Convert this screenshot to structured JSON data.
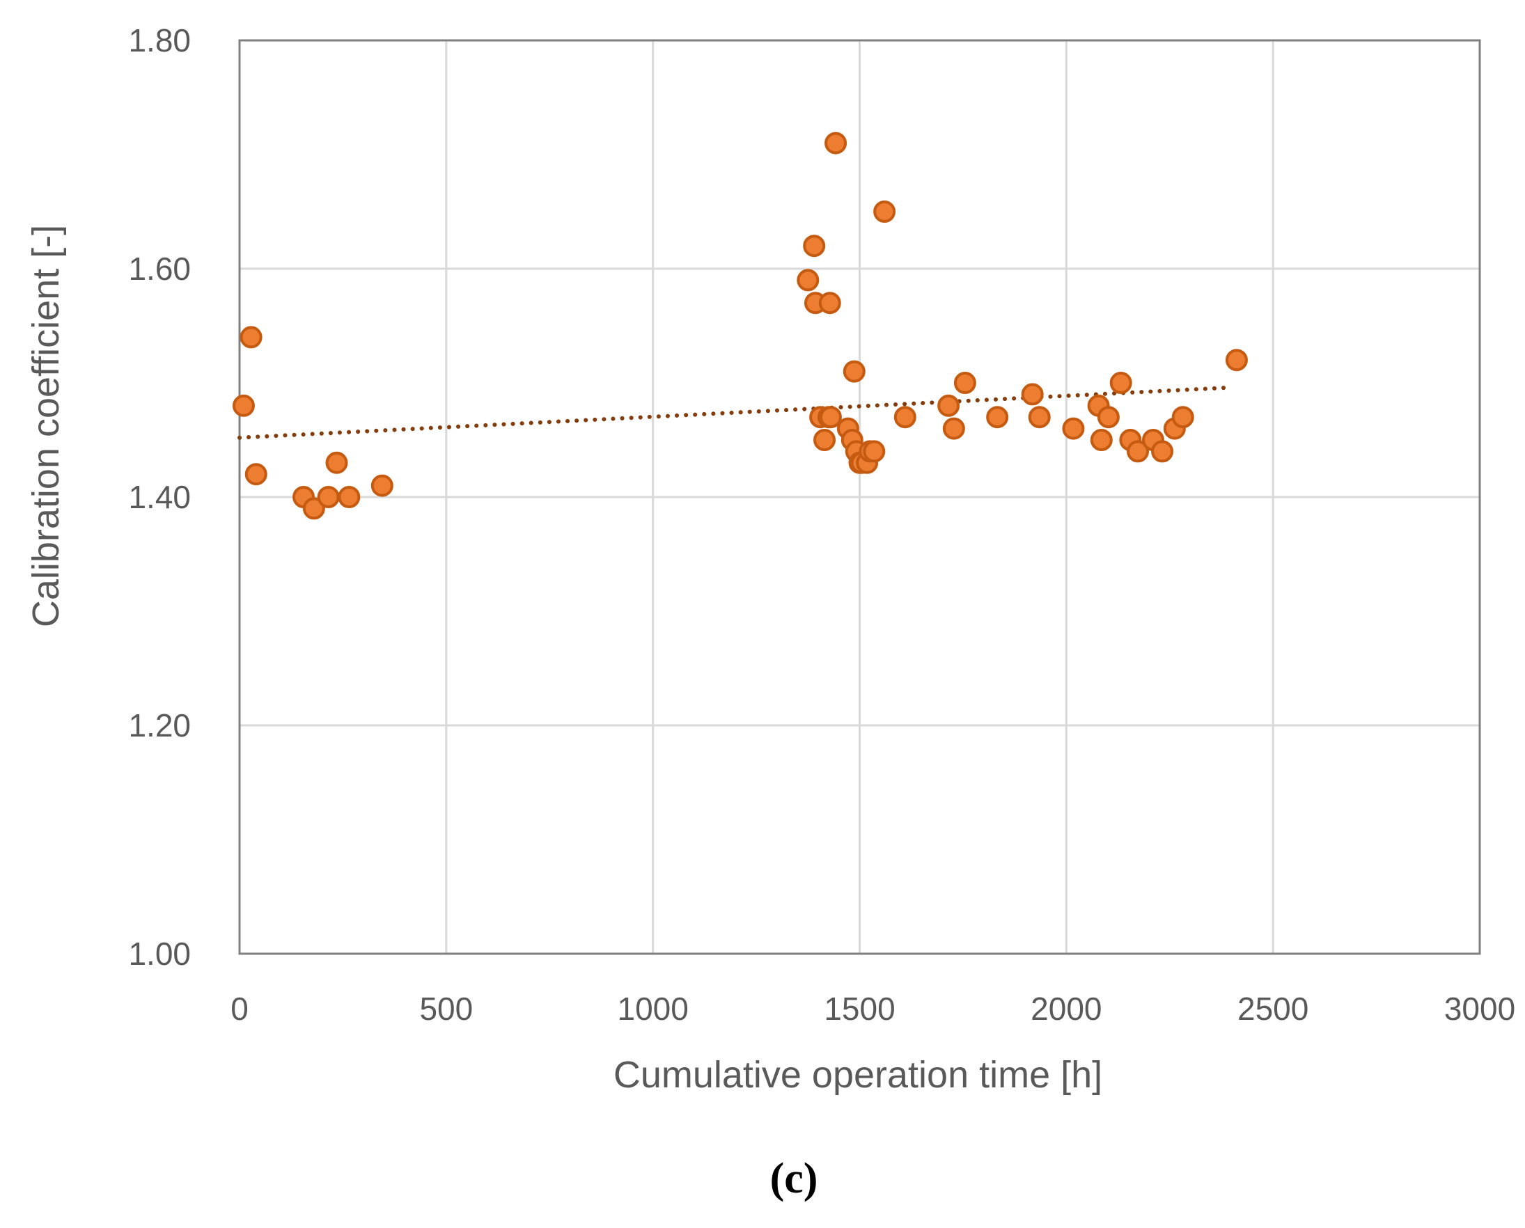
{
  "chart_data": {
    "type": "scatter",
    "title": "",
    "xlabel": "Cumulative operation time [h]",
    "ylabel": "Calibration coefficient [-]",
    "xlim": [
      0,
      3000
    ],
    "ylim": [
      1.0,
      1.8
    ],
    "xticks": [
      0,
      500,
      1000,
      1500,
      2000,
      2500,
      3000
    ],
    "xtick_labels": [
      "0",
      "500",
      "1000",
      "1500",
      "2000",
      "2500",
      "3000"
    ],
    "yticks": [
      1.0,
      1.2,
      1.4,
      1.6,
      1.8
    ],
    "ytick_labels": [
      "1.00",
      "1.20",
      "1.40",
      "1.60",
      "1.80"
    ],
    "grid": true,
    "legend": "none",
    "panel_label": "(c)",
    "series": [
      {
        "name": "Calibration coefficient",
        "marker": "circle",
        "x": [
          10,
          28,
          40,
          155,
          180,
          215,
          235,
          265,
          345,
          1375,
          1390,
          1393,
          1405,
          1415,
          1425,
          1428,
          1430,
          1442,
          1472,
          1482,
          1487,
          1492,
          1500,
          1505,
          1518,
          1525,
          1535,
          1560,
          1610,
          1715,
          1728,
          1755,
          1833,
          1918,
          1935,
          2017,
          2078,
          2085,
          2102,
          2132,
          2155,
          2173,
          2210,
          2232,
          2262,
          2282,
          2412
        ],
        "y": [
          1.48,
          1.54,
          1.42,
          1.4,
          1.39,
          1.4,
          1.43,
          1.4,
          1.41,
          1.59,
          1.62,
          1.57,
          1.47,
          1.45,
          1.47,
          1.57,
          1.47,
          1.71,
          1.46,
          1.45,
          1.51,
          1.44,
          1.43,
          1.43,
          1.43,
          1.44,
          1.44,
          1.65,
          1.47,
          1.48,
          1.46,
          1.5,
          1.47,
          1.49,
          1.47,
          1.46,
          1.48,
          1.45,
          1.47,
          1.5,
          1.45,
          1.44,
          1.45,
          1.44,
          1.46,
          1.47,
          1.52
        ]
      }
    ],
    "trendline": {
      "name": "Linear trend",
      "style": "dotted",
      "x": [
        0,
        2400
      ],
      "y": [
        1.452,
        1.496
      ]
    },
    "colors": {
      "marker_fill": "#ED7D31",
      "marker_edge": "#C55A11",
      "trendline": "#843C0C",
      "grid": "#D9D9D9",
      "axis": "#7F7F7F"
    }
  }
}
